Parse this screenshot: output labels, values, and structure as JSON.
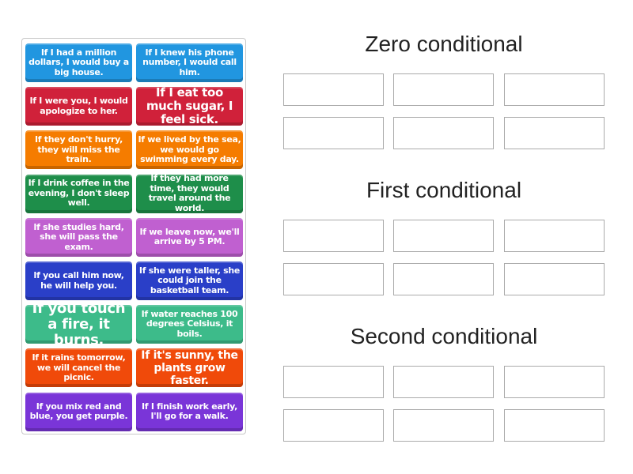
{
  "cards": [
    {
      "text": "If I had a million dollars, I would buy a big house.",
      "color": "#2196e0"
    },
    {
      "text": "If I knew his phone number, I would call him.",
      "color": "#2196e0"
    },
    {
      "text": "If I were you, I would apologize to her.",
      "color": "#d0213a"
    },
    {
      "text": "If I eat too much sugar, I feel sick.",
      "color": "#d0213a"
    },
    {
      "text": "If they don't hurry, they will miss the train.",
      "color": "#f57c00"
    },
    {
      "text": "If we lived by the sea, we would go swimming every day.",
      "color": "#f57c00"
    },
    {
      "text": "If I drink coffee in the evening, I don't sleep well.",
      "color": "#1e8e4a"
    },
    {
      "text": "If they had more time, they would travel around the world.",
      "color": "#1e8e4a"
    },
    {
      "text": "If she studies hard, she will pass the exam.",
      "color": "#c060d0"
    },
    {
      "text": "If we leave now, we'll arrive by 5 PM.",
      "color": "#c060d0"
    },
    {
      "text": "If you call him now, he will help you.",
      "color": "#2a3fc8"
    },
    {
      "text": "If she were taller, she could join the basketball team.",
      "color": "#2a3fc8"
    },
    {
      "text": "If you touch a fire, it burns.",
      "color": "#3dbb8a"
    },
    {
      "text": "If water reaches 100 degrees Celsius, it boils.",
      "color": "#3dbb8a"
    },
    {
      "text": "If it rains tomorrow, we will cancel the picnic.",
      "color": "#f04a0a"
    },
    {
      "text": "If it's sunny, the plants grow faster.",
      "color": "#f04a0a"
    },
    {
      "text": "If you mix red and blue, you get purple.",
      "color": "#7a35d8"
    },
    {
      "text": "If I finish work early, I'll go for a walk.",
      "color": "#7a35d8"
    }
  ],
  "groups": [
    {
      "title": "Zero conditional"
    },
    {
      "title": "First conditional"
    },
    {
      "title": "Second conditional"
    }
  ]
}
